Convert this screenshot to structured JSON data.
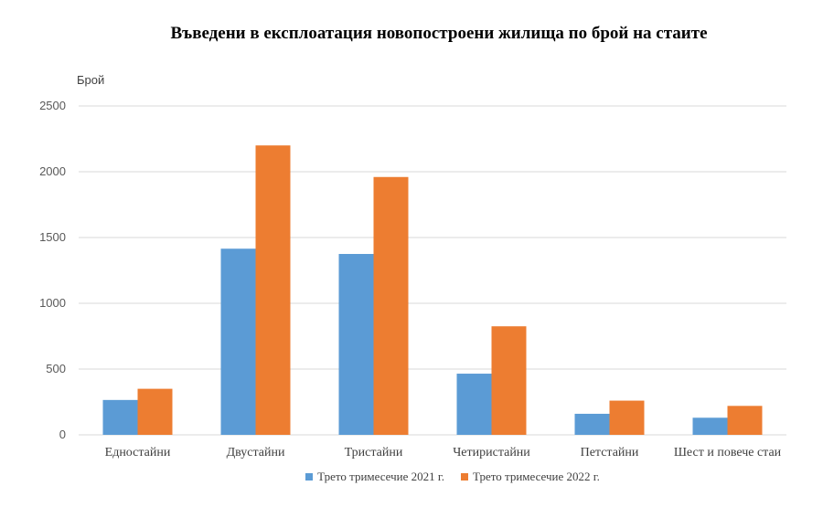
{
  "chart_data": {
    "type": "bar",
    "title": "Въведени в експлоатация новопостроени жилища по брой на стаите",
    "ylabel": "Брой",
    "xlabel": "",
    "ylim": [
      0,
      2500
    ],
    "yticks": [
      0,
      500,
      1000,
      1500,
      2000,
      2500
    ],
    "grid": true,
    "legend_position": "bottom",
    "categories": [
      "Едностайни",
      "Двустайни",
      "Тристайни",
      "Четиристайни",
      "Петстайни",
      "Шест и повече стаи"
    ],
    "series": [
      {
        "name": "Трето тримесечие 2021  г.",
        "color": "#5B9BD5",
        "values": [
          265,
          1415,
          1375,
          465,
          160,
          130
        ]
      },
      {
        "name": "Трето тримесечие 2022  г.",
        "color": "#ED7D31",
        "values": [
          350,
          2200,
          1960,
          825,
          260,
          220
        ]
      }
    ]
  }
}
